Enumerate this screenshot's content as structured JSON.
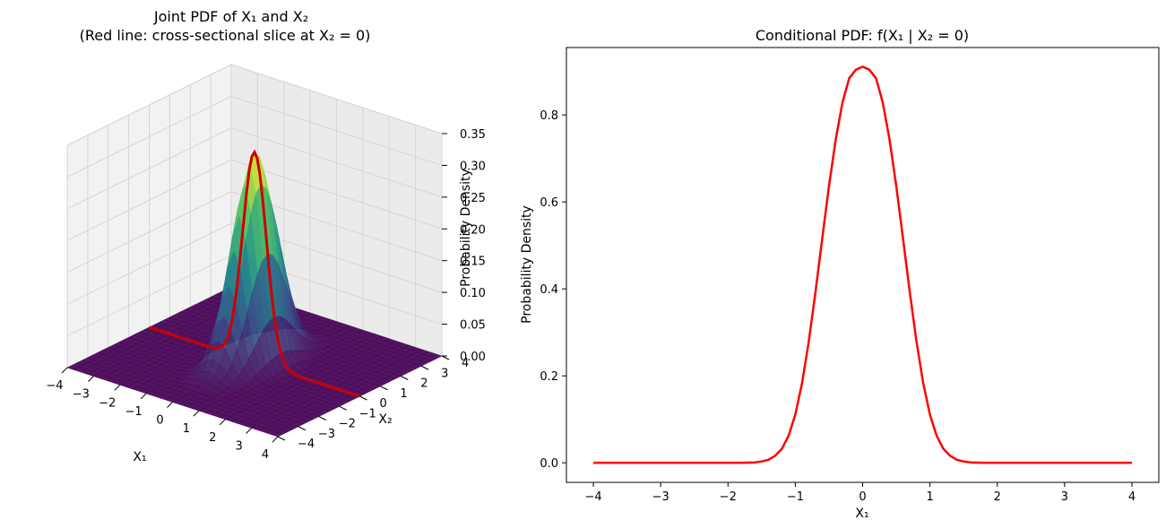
{
  "chart_data": [
    {
      "type": "surface",
      "title_line1": "Joint PDF of X₁ and X₂",
      "title_line2": "(Red line: cross-sectional slice at X₂ = 0)",
      "xlabel": "X₁",
      "ylabel": "X₂",
      "zlabel": "Probability Density",
      "xlim": [
        -4,
        4
      ],
      "ylim": [
        -4,
        4
      ],
      "zlim": [
        0,
        0.35
      ],
      "x_ticks": [
        "−4",
        "−3",
        "−2",
        "−1",
        "0",
        "1",
        "2",
        "3",
        "4"
      ],
      "y_ticks": [
        "−4",
        "−3",
        "−2",
        "−1",
        "0",
        "1",
        "2",
        "3",
        "4"
      ],
      "z_ticks": [
        "0.00",
        "0.05",
        "0.10",
        "0.15",
        "0.20",
        "0.25",
        "0.30",
        "0.35"
      ],
      "peak_density": 0.33,
      "colormap": "viridis",
      "slice": {
        "at_x2": 0,
        "color": "#cc0000"
      },
      "grid": true
    },
    {
      "type": "line",
      "title": "Conditional PDF: f(X₁ | X₂ = 0)",
      "xlabel": "X₁",
      "ylabel": "Probability Density",
      "xlim": [
        -4.4,
        4.4
      ],
      "ylim": [
        -0.045,
        0.955
      ],
      "x_ticks": [
        -4,
        -3,
        -2,
        -1,
        0,
        1,
        2,
        3,
        4
      ],
      "x_tick_labels": [
        "−4",
        "−3",
        "−2",
        "−1",
        "0",
        "1",
        "2",
        "3",
        "4"
      ],
      "y_ticks": [
        0.0,
        0.2,
        0.4,
        0.6,
        0.8
      ],
      "y_tick_labels": [
        "0.0",
        "0.2",
        "0.4",
        "0.6",
        "0.8"
      ],
      "series": [
        {
          "color": "#ff0000",
          "x": [
            -4.0,
            -3.0,
            -2.0,
            -1.8,
            -1.6,
            -1.5,
            -1.4,
            -1.3,
            -1.2,
            -1.1,
            -1.0,
            -0.9,
            -0.8,
            -0.7,
            -0.6,
            -0.5,
            -0.4,
            -0.3,
            -0.2,
            -0.1,
            0.0,
            0.1,
            0.2,
            0.3,
            0.4,
            0.5,
            0.6,
            0.7,
            0.8,
            0.9,
            1.0,
            1.1,
            1.2,
            1.3,
            1.4,
            1.5,
            1.6,
            1.8,
            2.0,
            3.0,
            4.0
          ],
          "y": [
            0.0,
            0.0,
            0.0,
            0.0,
            0.001,
            0.003,
            0.007,
            0.016,
            0.032,
            0.062,
            0.111,
            0.183,
            0.279,
            0.393,
            0.516,
            0.636,
            0.743,
            0.828,
            0.884,
            0.904,
            0.911,
            0.904,
            0.884,
            0.828,
            0.743,
            0.636,
            0.516,
            0.393,
            0.279,
            0.183,
            0.111,
            0.062,
            0.032,
            0.016,
            0.007,
            0.003,
            0.001,
            0.0,
            0.0,
            0.0,
            0.0
          ]
        }
      ],
      "grid": false
    }
  ]
}
